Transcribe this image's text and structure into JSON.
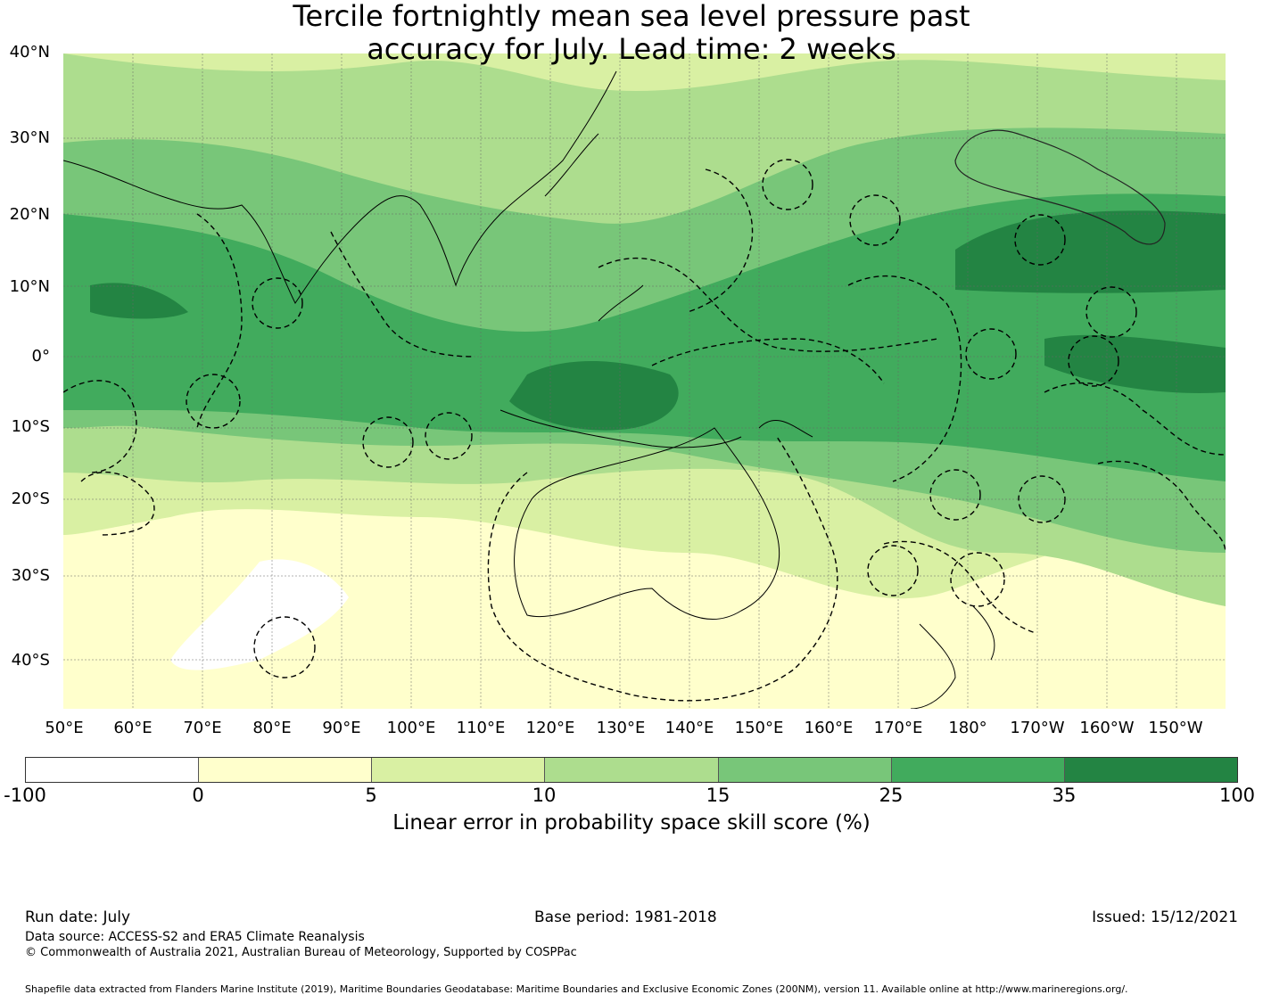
{
  "title_line1": "Tercile fortnightly mean sea level pressure past",
  "title_line2": "accuracy for July. Lead time: 2 weeks",
  "map": {
    "lat_labels": [
      "40°N",
      "30°N",
      "20°N",
      "10°N",
      "0°",
      "10°S",
      "20°S",
      "30°S",
      "40°S"
    ],
    "lon_labels": [
      "50°E",
      "60°E",
      "70°E",
      "80°E",
      "90°E",
      "100°E",
      "110°E",
      "120°E",
      "130°E",
      "140°E",
      "150°E",
      "160°E",
      "170°E",
      "180°",
      "170°W",
      "160°W",
      "150°W"
    ],
    "lat_range": [
      "46°S",
      "40°N"
    ],
    "lon_range": [
      "50°E",
      "143°W"
    ]
  },
  "colorbar": {
    "ticks": [
      "-100",
      "0",
      "5",
      "10",
      "15",
      "25",
      "35",
      "100"
    ],
    "colors": [
      "#ffffff",
      "#ffffcc",
      "#d9f0a3",
      "#addd8e",
      "#78c679",
      "#41ab5d",
      "#238443"
    ],
    "label": "Linear error in probability space skill score (%)"
  },
  "footer": {
    "run_date": "Run date: July",
    "base_period": "Base period: 1981-2018",
    "issued": "Issued: 15/12/2021",
    "data_source": "Data source: ACCESS-S2 and ERA5 Climate Reanalysis",
    "copyright": "© Commonwealth of Australia 2021, Australian Bureau of Meteorology, Supported by COSPPac",
    "shapefile": "Shapefile data extracted from Flanders Marine Institute (2019), Maritime Boundaries Geodatabase: Maritime Boundaries and Exclusive Economic Zones (200NM), version 11. Available online at http://www.marineregions.org/."
  }
}
